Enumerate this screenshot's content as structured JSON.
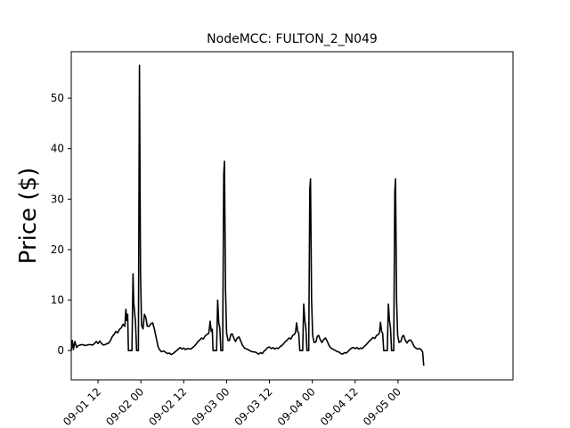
{
  "chart_data": {
    "type": "line",
    "title": "NodeMCC: FULTON_2_N049",
    "xlabel": "",
    "ylabel": "Price ($)",
    "ylim": [
      -5.8,
      59.2
    ],
    "xlim": [
      4.5,
      128.2
    ],
    "yticks": [
      0,
      10,
      20,
      30,
      40,
      50
    ],
    "xticks": [
      {
        "x": 12,
        "label": "09-01 12"
      },
      {
        "x": 24,
        "label": "09-02 00"
      },
      {
        "x": 36,
        "label": "09-02 12"
      },
      {
        "x": 48,
        "label": "09-03 00"
      },
      {
        "x": 60,
        "label": "09-03 12"
      },
      {
        "x": 72,
        "label": "09-04 00"
      },
      {
        "x": 84,
        "label": "09-04 12"
      },
      {
        "x": 96,
        "label": "09-05 00"
      }
    ],
    "series_color": "#000000",
    "grid": false,
    "series": [
      {
        "points": [
          [
            4.5,
            0
          ],
          [
            4.8,
            2
          ],
          [
            5.1,
            0.2
          ],
          [
            5.5,
            1.8
          ],
          [
            6,
            0.6
          ],
          [
            6.5,
            1
          ],
          [
            7.5,
            1.2
          ],
          [
            8.5,
            1
          ],
          [
            9.5,
            1.2
          ],
          [
            10.5,
            1.1
          ],
          [
            11,
            1.4
          ],
          [
            11.5,
            1.8
          ],
          [
            12,
            1.4
          ],
          [
            12.5,
            1.9
          ],
          [
            13,
            1.4
          ],
          [
            13.5,
            1.1
          ],
          [
            14,
            1.2
          ],
          [
            15,
            1.5
          ],
          [
            15.5,
            2
          ],
          [
            16,
            2.8
          ],
          [
            16.5,
            3.2
          ],
          [
            17,
            3.8
          ],
          [
            17.5,
            3.5
          ],
          [
            18,
            4.2
          ],
          [
            18.5,
            4.5
          ],
          [
            19,
            5.2
          ],
          [
            19.5,
            4.8
          ],
          [
            19.8,
            8.2
          ],
          [
            20,
            6
          ],
          [
            20.3,
            7.2
          ],
          [
            20.5,
            0
          ],
          [
            21.5,
            0
          ],
          [
            21.8,
            15.2
          ],
          [
            22,
            9.5
          ],
          [
            22.5,
            5.5
          ],
          [
            22.8,
            0
          ],
          [
            23.3,
            0
          ],
          [
            23.6,
            56.5
          ],
          [
            23.9,
            15
          ],
          [
            24.2,
            5
          ],
          [
            24.6,
            4.3
          ],
          [
            25,
            7.2
          ],
          [
            25.4,
            6.5
          ],
          [
            25.8,
            4.8
          ],
          [
            26.3,
            4.8
          ],
          [
            26.8,
            5.3
          ],
          [
            27.3,
            5.5
          ],
          [
            27.8,
            4.2
          ],
          [
            28.3,
            2.5
          ],
          [
            28.8,
            0.8
          ],
          [
            29.2,
            0.2
          ],
          [
            29.7,
            -0.2
          ],
          [
            30.5,
            -0.1
          ],
          [
            31,
            -0.4
          ],
          [
            31.5,
            -0.6
          ],
          [
            32,
            -0.5
          ],
          [
            32.5,
            -0.8
          ],
          [
            33,
            -0.6
          ],
          [
            33.5,
            -0.3
          ],
          [
            34,
            0
          ],
          [
            34.5,
            0.3
          ],
          [
            35,
            0.6
          ],
          [
            35.5,
            0.3
          ],
          [
            36,
            0.5
          ],
          [
            36.5,
            0.2
          ],
          [
            37,
            0.4
          ],
          [
            38,
            0.3
          ],
          [
            38.5,
            0.6
          ],
          [
            39,
            0.9
          ],
          [
            39.5,
            1.3
          ],
          [
            40,
            1.8
          ],
          [
            40.5,
            2.1
          ],
          [
            41,
            2.5
          ],
          [
            41.5,
            2.3
          ],
          [
            42,
            2.9
          ],
          [
            42.5,
            3.2
          ],
          [
            43,
            3.4
          ],
          [
            43.4,
            5.8
          ],
          [
            43.7,
            3.8
          ],
          [
            44,
            4.2
          ],
          [
            44.2,
            0
          ],
          [
            45.2,
            0
          ],
          [
            45.5,
            10
          ],
          [
            45.8,
            5.5
          ],
          [
            46.1,
            4.5
          ],
          [
            46.4,
            0
          ],
          [
            46.9,
            0
          ],
          [
            47.2,
            35
          ],
          [
            47.4,
            37.5
          ],
          [
            47.7,
            12
          ],
          [
            48,
            3.5
          ],
          [
            48.4,
            2
          ],
          [
            48.8,
            2
          ],
          [
            49.2,
            3.2
          ],
          [
            49.6,
            3.3
          ],
          [
            50,
            2.5
          ],
          [
            50.5,
            1.8
          ],
          [
            51,
            2.5
          ],
          [
            51.5,
            2.7
          ],
          [
            52,
            1.8
          ],
          [
            52.5,
            1
          ],
          [
            53,
            0.5
          ],
          [
            54,
            0.2
          ],
          [
            55,
            -0.2
          ],
          [
            56,
            -0.3
          ],
          [
            56.5,
            -0.5
          ],
          [
            57,
            -0.7
          ],
          [
            57.5,
            -0.4
          ],
          [
            58,
            -0.6
          ],
          [
            58.5,
            -0.1
          ],
          [
            59,
            0.2
          ],
          [
            59.5,
            0.6
          ],
          [
            60,
            0.7
          ],
          [
            60.5,
            0.4
          ],
          [
            61,
            0.6
          ],
          [
            61.5,
            0.3
          ],
          [
            62,
            0.5
          ],
          [
            62.5,
            0.4
          ],
          [
            63,
            0.8
          ],
          [
            63.5,
            1
          ],
          [
            64,
            1.4
          ],
          [
            64.5,
            1.8
          ],
          [
            65,
            2.1
          ],
          [
            65.5,
            2.5
          ],
          [
            66,
            2.3
          ],
          [
            66.5,
            3
          ],
          [
            67,
            3.2
          ],
          [
            67.3,
            3.6
          ],
          [
            67.6,
            5.5
          ],
          [
            67.9,
            3.8
          ],
          [
            68.2,
            3.5
          ],
          [
            68.5,
            0
          ],
          [
            69.3,
            0
          ],
          [
            69.6,
            9.2
          ],
          [
            69.9,
            6
          ],
          [
            70.2,
            4.5
          ],
          [
            70.5,
            0
          ],
          [
            71,
            0
          ],
          [
            71.3,
            32
          ],
          [
            71.5,
            34
          ],
          [
            71.8,
            10
          ],
          [
            72.1,
            3
          ],
          [
            72.5,
            1.6
          ],
          [
            73,
            1.7
          ],
          [
            73.4,
            2.8
          ],
          [
            73.8,
            3
          ],
          [
            74.2,
            2.2
          ],
          [
            74.7,
            1.6
          ],
          [
            75.2,
            2.2
          ],
          [
            75.7,
            2.5
          ],
          [
            76.2,
            1.8
          ],
          [
            76.7,
            1
          ],
          [
            77.2,
            0.5
          ],
          [
            78,
            0.2
          ],
          [
            79,
            -0.2
          ],
          [
            79.5,
            -0.3
          ],
          [
            80,
            -0.6
          ],
          [
            80.5,
            -0.7
          ],
          [
            81,
            -0.4
          ],
          [
            81.5,
            -0.5
          ],
          [
            82,
            -0.2
          ],
          [
            82.5,
            0.2
          ],
          [
            83,
            0.5
          ],
          [
            83.5,
            0.6
          ],
          [
            84,
            0.4
          ],
          [
            84.5,
            0.6
          ],
          [
            85,
            0.3
          ],
          [
            85.5,
            0.5
          ],
          [
            86,
            0.4
          ],
          [
            86.5,
            0.8
          ],
          [
            87,
            1.1
          ],
          [
            87.5,
            1.5
          ],
          [
            88,
            1.9
          ],
          [
            88.5,
            2.2
          ],
          [
            89,
            2.6
          ],
          [
            89.5,
            2.4
          ],
          [
            90,
            3
          ],
          [
            90.5,
            3.2
          ],
          [
            90.8,
            3.5
          ],
          [
            91.1,
            5.6
          ],
          [
            91.4,
            3.8
          ],
          [
            91.7,
            3.4
          ],
          [
            92,
            0
          ],
          [
            93,
            0
          ],
          [
            93.3,
            9.2
          ],
          [
            93.6,
            6
          ],
          [
            93.9,
            4.5
          ],
          [
            94.2,
            0
          ],
          [
            94.8,
            0
          ],
          [
            95.1,
            31.5
          ],
          [
            95.3,
            34
          ],
          [
            95.6,
            10
          ],
          [
            95.9,
            3
          ],
          [
            96.3,
            1.6
          ],
          [
            96.8,
            1.8
          ],
          [
            97.2,
            2.8
          ],
          [
            97.6,
            3
          ],
          [
            98,
            2.1
          ],
          [
            98.5,
            1.5
          ],
          [
            99,
            2
          ],
          [
            99.5,
            2.1
          ],
          [
            100,
            1.6
          ],
          [
            100.5,
            0.8
          ],
          [
            101,
            0.5
          ],
          [
            101.5,
            0.3
          ],
          [
            102,
            0.4
          ],
          [
            102.5,
            0.2
          ],
          [
            102.9,
            -0.3
          ],
          [
            103.2,
            -3
          ]
        ]
      }
    ]
  }
}
